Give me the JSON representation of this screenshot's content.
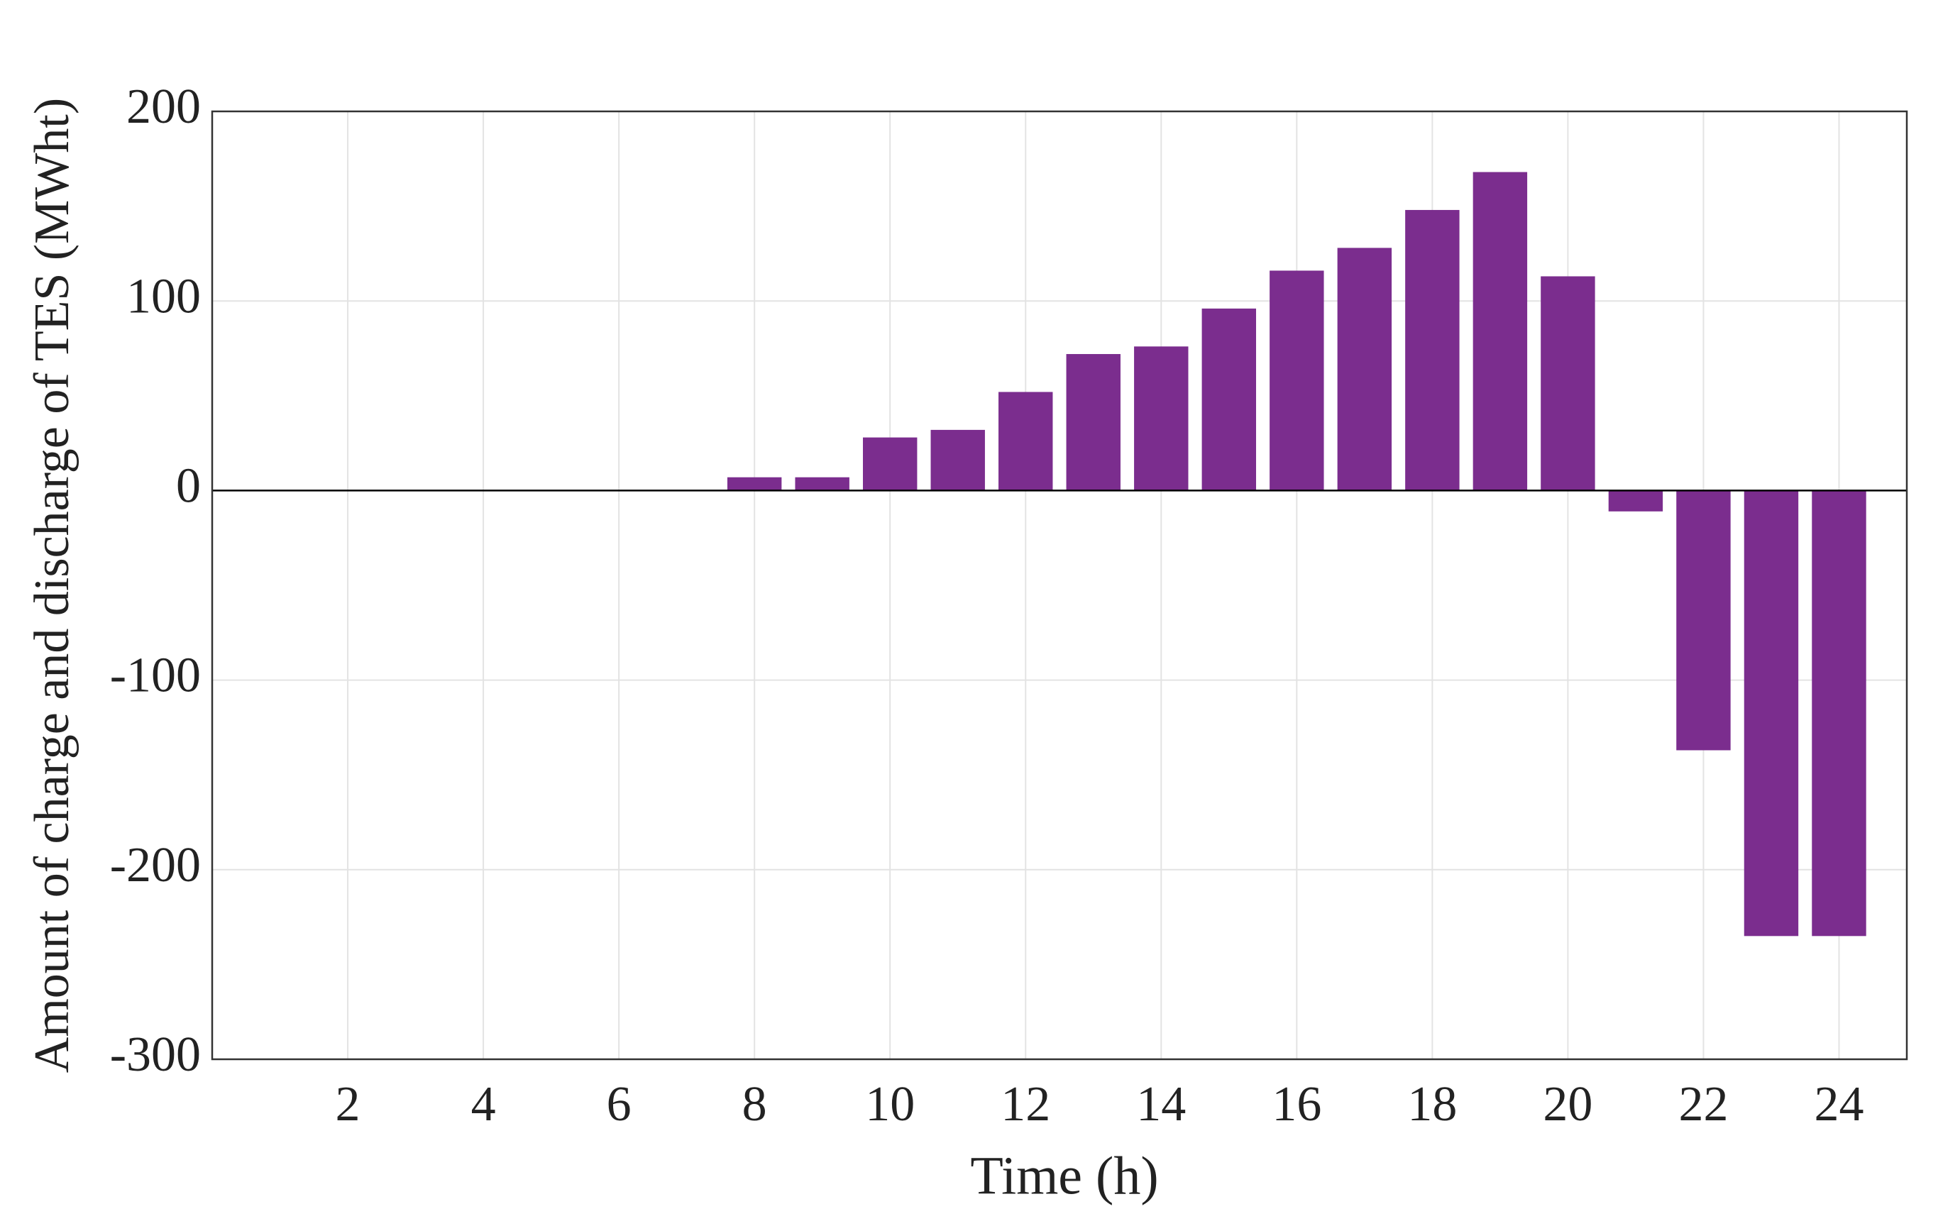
{
  "chart_data": {
    "type": "bar",
    "xlabel": "Time (h)",
    "ylabel": "Amount of charge and discharge of TES (MWht)",
    "x": [
      1,
      2,
      3,
      4,
      5,
      6,
      7,
      8,
      9,
      10,
      11,
      12,
      13,
      14,
      15,
      16,
      17,
      18,
      19,
      20,
      21,
      22,
      23,
      24
    ],
    "values": [
      0,
      0,
      0,
      0,
      0,
      0,
      0,
      7,
      7,
      28,
      32,
      52,
      72,
      76,
      96,
      116,
      128,
      148,
      168,
      113,
      -11,
      -137,
      -235,
      -235
    ],
    "color": "#7b2d8e",
    "xlim": [
      0,
      25
    ],
    "xticks": [
      2,
      4,
      6,
      8,
      10,
      12,
      14,
      16,
      18,
      20,
      22,
      24
    ],
    "ylim": [
      -300,
      200
    ],
    "yticks": [
      -300,
      -200,
      -100,
      0,
      100,
      200
    ],
    "grid": true
  }
}
